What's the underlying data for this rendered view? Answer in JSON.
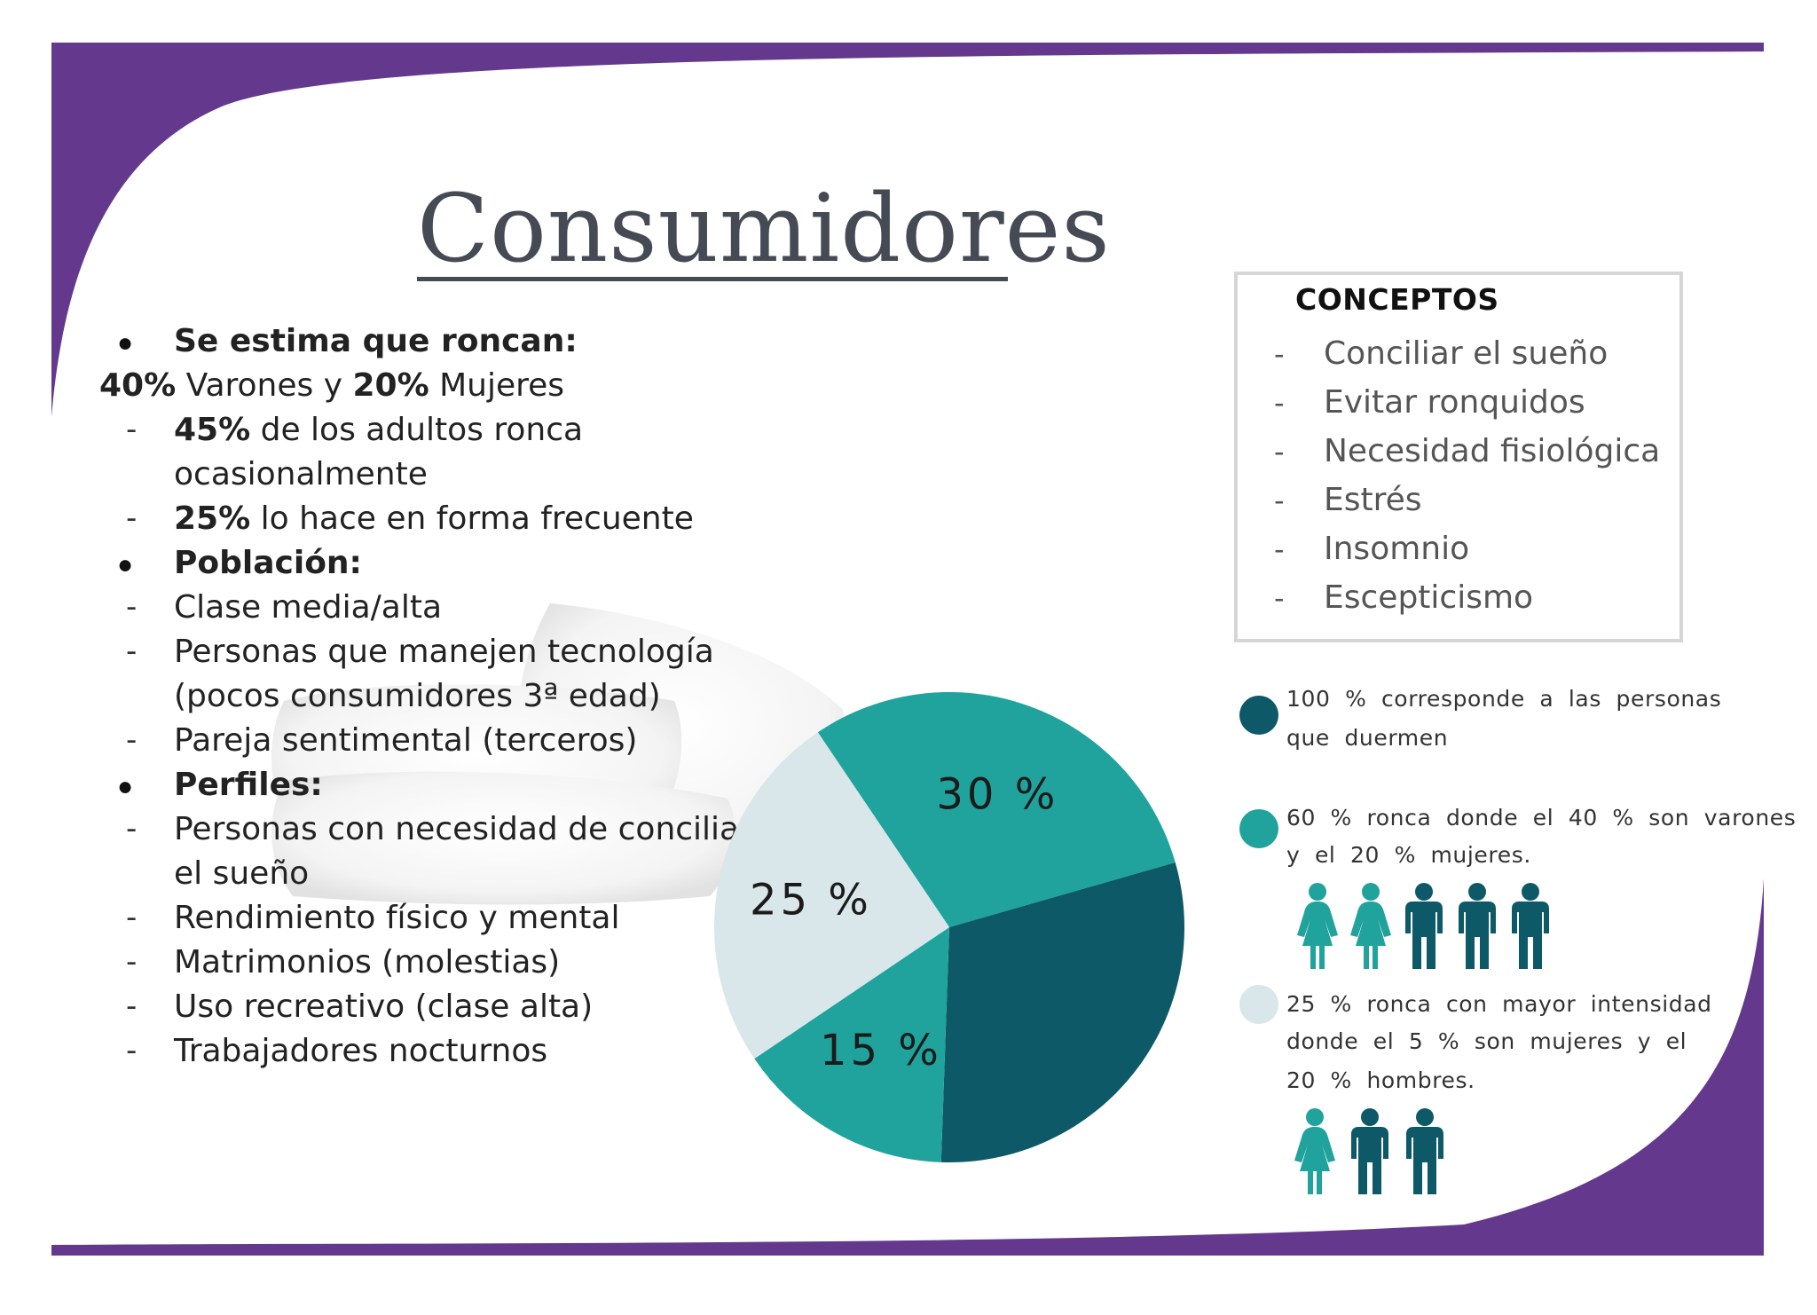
{
  "colors": {
    "accent_purple": "#64388d",
    "dark_teal": "#0e5968",
    "teal": "#1fa39c",
    "light_gray_blue": "#d9e6ea",
    "title": "#454a55"
  },
  "title": "Consumidores",
  "left_list": {
    "item1_heading": "Se estima que roncan:",
    "line2_a_bold": "40%",
    "line2_b": " Varones y ",
    "line2_c_bold": "20%",
    "line2_d": " Mujeres",
    "sub1_bold": "45%",
    "sub1_text": " de los adultos ronca",
    "sub1_cont": "ocasionalmente",
    "sub2_bold": "25%",
    "sub2_text": " lo hace en forma frecuente",
    "item2_heading": "Población:",
    "pop1": "Clase media/alta",
    "pop2": "Personas que manejen tecnología",
    "pop2_cont": "(pocos consumidores 3ª edad)",
    "pop3": "Pareja sentimental (terceros)",
    "item3_heading": "Perfiles:",
    "perf1": "Personas con necesidad de conciliar",
    "perf1_cont": "el sueño",
    "perf2": "Rendimiento físico y mental",
    "perf3": "Matrimonios (molestias)",
    "perf4": "Uso recreativo (clase alta)",
    "perf5": "Trabajadores nocturnos"
  },
  "concepts": {
    "title": "CONCEPTOS",
    "items": [
      "Conciliar el sueño",
      "Evitar ronquidos",
      "Necesidad fisiológica",
      "Estrés",
      "Insomnio",
      "Escepticismo"
    ]
  },
  "legend": {
    "l1a": "100 % corresponde a las personas",
    "l1b": "que duermen",
    "l2a": "60 % ronca donde el 40 % son varones",
    "l2b": "y el 20 % mujeres.",
    "l3a": "25 % ronca con mayor intensidad",
    "l3b": "donde el 5 % son mujeres y el",
    "l3c": "20 % hombres."
  },
  "chart_data": {
    "type": "pie",
    "slices": [
      {
        "label": "30 %",
        "value": 30,
        "color": "#1fa39c"
      },
      {
        "label": "",
        "value": 30,
        "color": "#0e5968"
      },
      {
        "label": "15 %",
        "value": 15,
        "color": "#1fa39c"
      },
      {
        "label": "25 %",
        "value": 25,
        "color": "#d9e6ea"
      }
    ]
  },
  "icons": {
    "row1": [
      "female-icon",
      "female-icon",
      "male-icon",
      "male-icon",
      "male-icon"
    ],
    "row2": [
      "female-icon",
      "male-icon",
      "male-icon"
    ]
  }
}
